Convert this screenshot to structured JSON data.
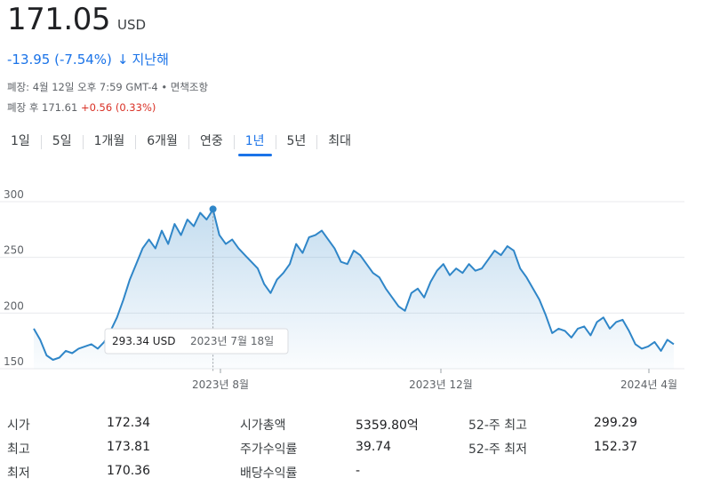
{
  "quote": {
    "price": "171.05",
    "currency": "USD",
    "change": "-13.95 (-7.54%)",
    "change_arrow": "↓",
    "change_period": "지난해",
    "meta": "폐장: 4월 12일 오후 7:59 GMT-4 • 면책조항",
    "after_label": "폐장 후 171.61",
    "after_change": "+0.56 (0.33%)"
  },
  "tabs": [
    {
      "label": "1일"
    },
    {
      "label": "5일"
    },
    {
      "label": "1개월"
    },
    {
      "label": "6개월"
    },
    {
      "label": "연중"
    },
    {
      "label": "1년",
      "active": true
    },
    {
      "label": "5년"
    },
    {
      "label": "최대"
    }
  ],
  "colors": {
    "line": "#2f86c8",
    "accent": "#1a73e8",
    "negative": "#1a73e8",
    "positive": "#d93025"
  },
  "tooltip": {
    "price": "293.34 USD",
    "date": "2023년 7월 18일"
  },
  "chart_data": {
    "type": "area",
    "y_ticks": [
      "300",
      "250",
      "200",
      "150"
    ],
    "ylim": [
      150,
      300
    ],
    "x_tick_labels": [
      "2023년 8월",
      "2023년 12월",
      "2024년 4월"
    ],
    "grid": true,
    "highlight": {
      "x": 0.28,
      "y": 293.34
    },
    "x": [
      0.0,
      0.01,
      0.02,
      0.03,
      0.04,
      0.05,
      0.06,
      0.07,
      0.08,
      0.09,
      0.1,
      0.11,
      0.12,
      0.13,
      0.14,
      0.15,
      0.16,
      0.17,
      0.18,
      0.19,
      0.2,
      0.21,
      0.22,
      0.23,
      0.24,
      0.25,
      0.26,
      0.27,
      0.28,
      0.29,
      0.3,
      0.31,
      0.32,
      0.33,
      0.34,
      0.35,
      0.36,
      0.37,
      0.38,
      0.39,
      0.4,
      0.41,
      0.42,
      0.43,
      0.44,
      0.45,
      0.46,
      0.47,
      0.48,
      0.49,
      0.5,
      0.51,
      0.52,
      0.53,
      0.54,
      0.55,
      0.56,
      0.57,
      0.58,
      0.59,
      0.6,
      0.61,
      0.62,
      0.63,
      0.64,
      0.65,
      0.66,
      0.67,
      0.68,
      0.69,
      0.7,
      0.71,
      0.72,
      0.73,
      0.74,
      0.75,
      0.76,
      0.77,
      0.78,
      0.79,
      0.8,
      0.81,
      0.82,
      0.83,
      0.84,
      0.85,
      0.86,
      0.87,
      0.88,
      0.89,
      0.9,
      0.91,
      0.92,
      0.93,
      0.94,
      0.95,
      0.96,
      0.97,
      0.98,
      0.99,
      1.0
    ],
    "y": [
      186,
      176,
      162,
      158,
      160,
      166,
      164,
      168,
      170,
      172,
      168,
      174,
      184,
      196,
      212,
      230,
      244,
      258,
      266,
      258,
      274,
      262,
      280,
      270,
      284,
      278,
      290,
      284,
      293,
      270,
      262,
      266,
      258,
      252,
      246,
      240,
      226,
      218,
      230,
      236,
      244,
      262,
      254,
      268,
      270,
      274,
      266,
      258,
      246,
      244,
      256,
      252,
      244,
      236,
      232,
      222,
      214,
      206,
      202,
      218,
      222,
      214,
      228,
      238,
      244,
      234,
      240,
      236,
      244,
      238,
      240,
      248,
      256,
      252,
      260,
      256,
      240,
      232,
      222,
      212,
      198,
      182,
      186,
      184,
      178,
      186,
      188,
      180,
      192,
      196,
      186,
      192,
      194,
      184,
      172,
      168,
      170,
      174,
      166,
      176,
      172
    ]
  },
  "stats": {
    "open_label": "시가",
    "open_value": "172.34",
    "high_label": "최고",
    "high_value": "173.81",
    "low_label": "최저",
    "low_value": "170.36",
    "mktcap_label": "시가총액",
    "mktcap_value": "5359.80억",
    "pe_label": "주가수익률",
    "pe_value": "39.74",
    "div_label": "배당수익률",
    "div_value": "-",
    "hi52_label": "52-주 최고",
    "hi52_value": "299.29",
    "lo52_label": "52-주 최저",
    "lo52_value": "152.37"
  }
}
